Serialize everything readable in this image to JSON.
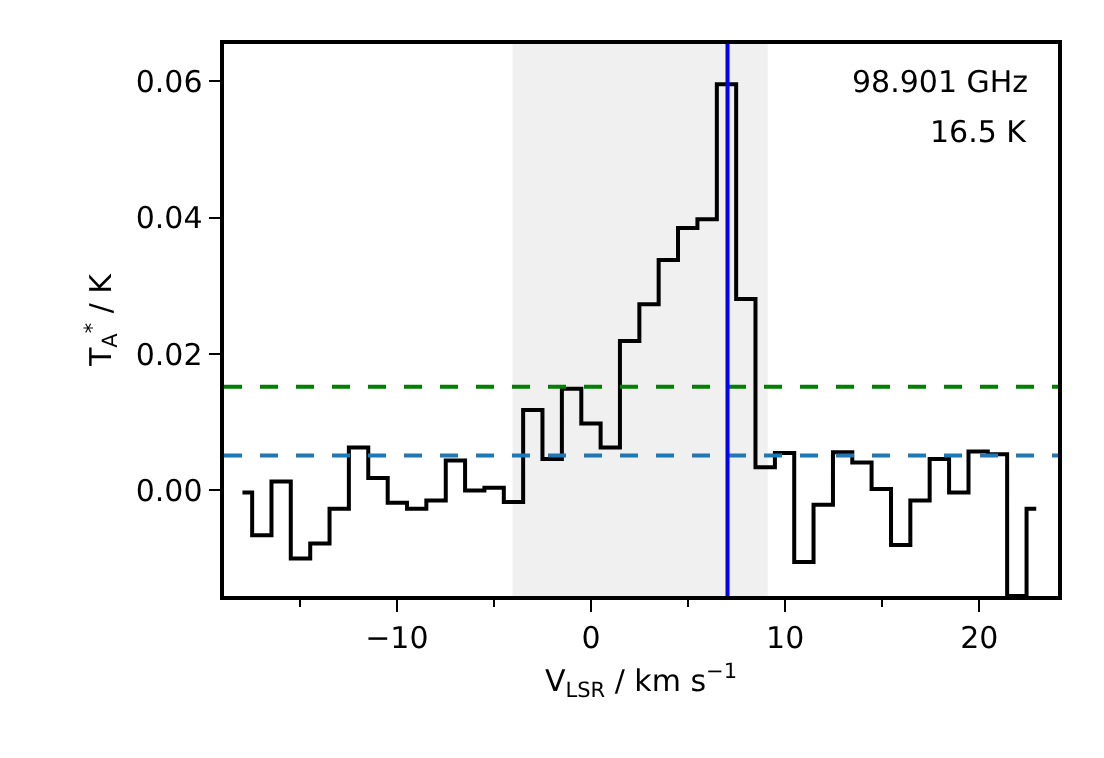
{
  "chart_data": {
    "type": "step",
    "xlabel": "V$_{LSR}$ / km s$^{−1}$",
    "ylabel": "T$_{A}$$^{*}$ / K",
    "x": [
      -17.95,
      -16.95,
      -15.96,
      -14.96,
      -13.96,
      -12.97,
      -11.97,
      -10.97,
      -9.97,
      -8.98,
      -7.98,
      -6.98,
      -5.99,
      -4.99,
      -3.99,
      -3.0,
      -2.0,
      -1.0,
      0.0,
      0.99,
      1.99,
      2.99,
      3.98,
      4.98,
      5.98,
      6.98,
      7.97,
      8.97,
      9.97,
      10.96,
      11.96,
      12.96,
      13.95,
      14.95,
      15.95,
      16.94,
      17.94,
      18.94,
      19.94,
      20.93,
      21.93,
      22.93
    ],
    "series": [
      {
        "color": "#000000",
        "values": [
          -0.0003,
          -0.0066,
          0.0013,
          -0.01,
          -0.0078,
          -0.0027,
          0.0063,
          0.0018,
          -0.0018,
          -0.0027,
          -0.0015,
          0.0044,
          0.0,
          0.0004,
          -0.0017,
          0.0118,
          0.0046,
          0.0149,
          0.0098,
          0.0063,
          0.0219,
          0.0273,
          0.0338,
          0.0385,
          0.0398,
          0.0596,
          0.0281,
          0.0034,
          0.0055,
          -0.0105,
          -0.0021,
          0.0056,
          0.0041,
          0.0002,
          -0.008,
          -0.0015,
          0.0046,
          -0.0003,
          0.0057,
          0.0053,
          -0.0155,
          -0.0027
        ]
      }
    ],
    "xlim": [
      -18.9,
      24.05
    ],
    "ylim": [
      -0.0155,
      0.0655
    ],
    "xticks": [
      {
        "value": -15,
        "label": null
      },
      {
        "value": -10,
        "label": "−10"
      },
      {
        "value": -5,
        "label": null
      },
      0,
      {
        "value": 5,
        "label": null
      },
      10,
      {
        "value": 15,
        "label": null
      },
      20
    ],
    "yticks": [
      {
        "value": 0,
        "label": "0.00"
      },
      {
        "value": 0.02,
        "label": "0.02"
      },
      {
        "value": 0.04,
        "label": "0.04"
      },
      {
        "value": 0.06,
        "label": "0.06"
      }
    ],
    "ref_lines": [
      {
        "axis": "y",
        "value": 0.0152,
        "color": "#008000",
        "line_style": "dashed"
      },
      {
        "axis": "y",
        "value": 0.0051,
        "color": "#1f77b4",
        "line_style": "dashed"
      },
      {
        "axis": "x",
        "value": 7.03,
        "color": "#0000ff",
        "line_style": "solid"
      }
    ],
    "bands": [
      {
        "axis": "x",
        "from": -4.04,
        "to": 9.1,
        "color": "#f0f0f0"
      }
    ],
    "annotations": [
      "98.901 GHz",
      "16.5 K"
    ]
  }
}
